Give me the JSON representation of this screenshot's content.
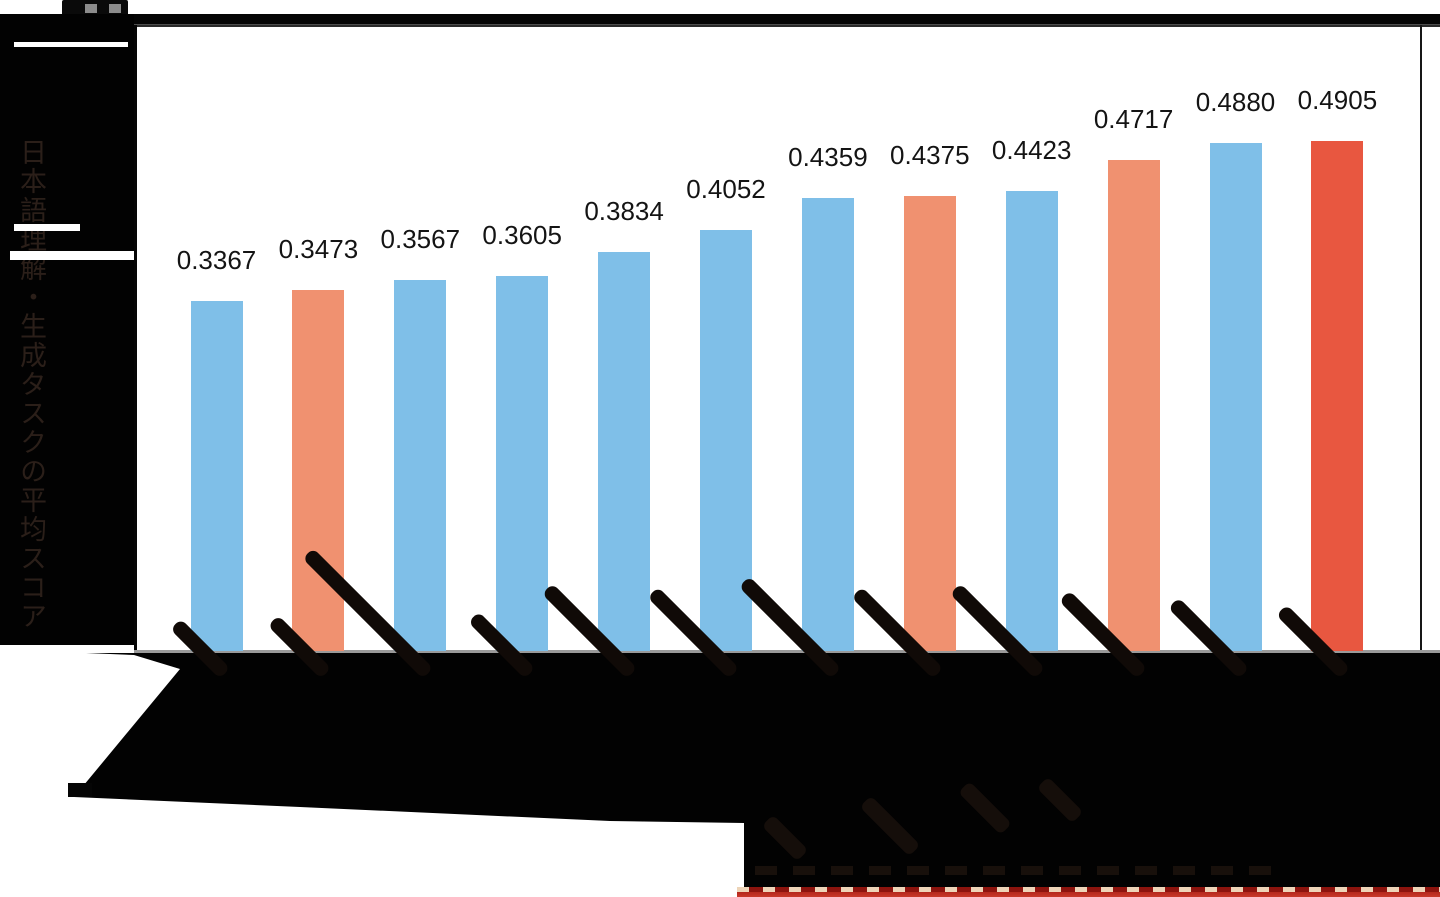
{
  "figure": {
    "y_axis_label": "日本語理解・生成タスクの平均スコア",
    "x_tick_labels_legible": false,
    "x_axis_caption_legible": false
  },
  "chart_data": {
    "type": "bar",
    "title": "",
    "xlabel": "",
    "ylabel": "日本語理解・生成タスクの平均スコア",
    "ylim": [
      0,
      0.6
    ],
    "grid": false,
    "legend": false,
    "categories": [
      "",
      "",
      "",
      "",
      "",
      "",
      "",
      "",
      "",
      "",
      "",
      ""
    ],
    "values": [
      0.3367,
      0.3473,
      0.3567,
      0.3605,
      0.3834,
      0.4052,
      0.4359,
      0.4375,
      0.4423,
      0.4717,
      0.488,
      0.4905
    ],
    "value_labels": [
      "0.3367",
      "0.3473",
      "0.3567",
      "0.3605",
      "0.3834",
      "0.4052",
      "0.4359",
      "0.4375",
      "0.4423",
      "0.4717",
      "0.4880",
      "0.4905"
    ],
    "bar_colors": [
      "#7FBFE8",
      "#F09170",
      "#7FBFE8",
      "#7FBFE8",
      "#7FBFE8",
      "#7FBFE8",
      "#7FBFE8",
      "#F09170",
      "#7FBFE8",
      "#F09170",
      "#7FBFE8",
      "#E85740"
    ],
    "default_color": "#7FBFE8",
    "secondary_color": "#F09170",
    "highlight_color": "#E85740",
    "underline_color": "#C9392A"
  }
}
